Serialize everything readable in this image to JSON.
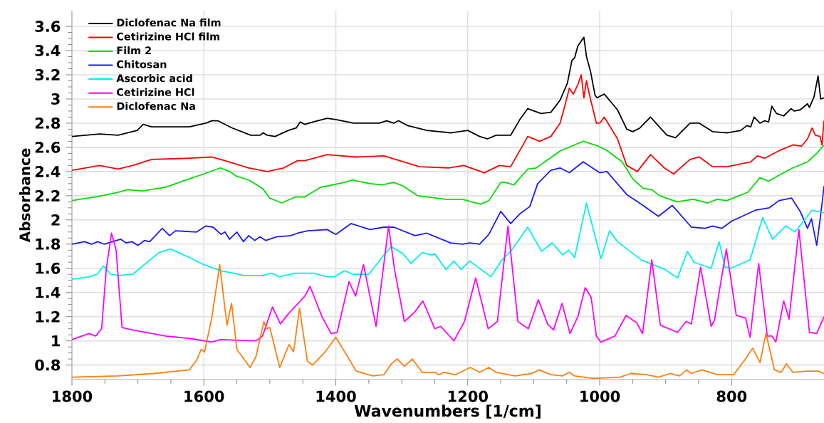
{
  "chart_data": {
    "type": "line",
    "xlabel": "Wavenumbers [1/cm]",
    "ylabel": "Absorbance",
    "xlim": [
      1800,
      660
    ],
    "ylim": [
      0.68,
      3.73
    ],
    "xticks": [
      1800,
      1600,
      1400,
      1200,
      1000,
      800
    ],
    "yticks": [
      0.8,
      1,
      1.2,
      1.4,
      1.6,
      1.8,
      2,
      2.2,
      2.4,
      2.6,
      2.8,
      3,
      3.2,
      3.4,
      3.6
    ],
    "grid": true,
    "legend": "top left",
    "marker": "none",
    "line_style": "solid",
    "series": [
      {
        "name": "Diclofenac Na film",
        "color": "#000000",
        "x": [
          1800,
          1758,
          1730,
          1701,
          1692,
          1679,
          1622,
          1597,
          1588,
          1579,
          1557,
          1529,
          1515,
          1510,
          1504,
          1492,
          1472,
          1460,
          1454,
          1447,
          1434,
          1413,
          1400,
          1373,
          1334,
          1323,
          1312,
          1305,
          1291,
          1262,
          1226,
          1200,
          1182,
          1170,
          1157,
          1135,
          1121,
          1109,
          1089,
          1074,
          1060,
          1049,
          1042,
          1038,
          1033,
          1024,
          1020,
          1014,
          1007,
          1004,
          993,
          973,
          959,
          950,
          939,
          923,
          898,
          885,
          863,
          849,
          829,
          807,
          786,
          777,
          771,
          766,
          757,
          750,
          744,
          739,
          732,
          721,
          710,
          705,
          696,
          685,
          682,
          675,
          669,
          665,
          660
        ],
        "values": [
          2.69,
          2.71,
          2.7,
          2.74,
          2.79,
          2.77,
          2.77,
          2.8,
          2.82,
          2.82,
          2.76,
          2.7,
          2.7,
          2.72,
          2.7,
          2.69,
          2.74,
          2.76,
          2.81,
          2.79,
          2.81,
          2.84,
          2.83,
          2.8,
          2.8,
          2.82,
          2.8,
          2.82,
          2.78,
          2.74,
          2.72,
          2.74,
          2.69,
          2.67,
          2.7,
          2.7,
          2.83,
          2.92,
          2.88,
          2.89,
          2.99,
          3.13,
          3.32,
          3.34,
          3.44,
          3.51,
          3.35,
          3.23,
          3.03,
          3.01,
          3.04,
          2.91,
          2.75,
          2.73,
          2.76,
          2.85,
          2.7,
          2.68,
          2.8,
          2.8,
          2.73,
          2.72,
          2.74,
          2.78,
          2.77,
          2.85,
          2.8,
          2.82,
          2.81,
          2.94,
          2.88,
          2.86,
          2.92,
          2.9,
          2.91,
          2.96,
          2.93,
          3.02,
          3.19,
          3.0,
          3.01
        ]
      },
      {
        "name": "Cetirizine HCl film",
        "color": "#ff0000",
        "x": [
          1800,
          1758,
          1730,
          1708,
          1679,
          1622,
          1588,
          1568,
          1532,
          1504,
          1479,
          1458,
          1447,
          1413,
          1370,
          1327,
          1273,
          1229,
          1206,
          1175,
          1152,
          1135,
          1109,
          1091,
          1074,
          1060,
          1053,
          1046,
          1040,
          1033,
          1028,
          1024,
          1020,
          1014,
          1005,
          1000,
          993,
          973,
          959,
          943,
          923,
          902,
          888,
          863,
          849,
          829,
          807,
          771,
          761,
          750,
          725,
          707,
          694,
          685,
          678,
          673,
          666,
          663,
          660
        ],
        "values": [
          2.41,
          2.45,
          2.42,
          2.45,
          2.5,
          2.51,
          2.52,
          2.49,
          2.43,
          2.4,
          2.43,
          2.49,
          2.49,
          2.54,
          2.52,
          2.53,
          2.44,
          2.43,
          2.45,
          2.39,
          2.45,
          2.44,
          2.69,
          2.65,
          2.69,
          2.8,
          2.94,
          3.09,
          3.04,
          3.12,
          3.2,
          3.01,
          3.15,
          3.0,
          2.8,
          2.8,
          2.85,
          2.67,
          2.45,
          2.4,
          2.54,
          2.43,
          2.38,
          2.5,
          2.52,
          2.44,
          2.44,
          2.48,
          2.53,
          2.51,
          2.58,
          2.62,
          2.61,
          2.67,
          2.76,
          2.7,
          2.69,
          2.62,
          2.82
        ]
      },
      {
        "name": "Film 2",
        "color": "#00dd00",
        "x": [
          1800,
          1765,
          1736,
          1715,
          1693,
          1658,
          1622,
          1600,
          1575,
          1561,
          1550,
          1532,
          1511,
          1500,
          1482,
          1461,
          1447,
          1423,
          1413,
          1387,
          1375,
          1348,
          1330,
          1312,
          1298,
          1276,
          1233,
          1208,
          1181,
          1168,
          1150,
          1143,
          1130,
          1109,
          1096,
          1060,
          1038,
          1025,
          1002,
          988,
          966,
          950,
          934,
          921,
          909,
          883,
          858,
          836,
          822,
          807,
          775,
          757,
          744,
          728,
          707,
          685,
          671,
          660
        ],
        "values": [
          2.16,
          2.19,
          2.22,
          2.25,
          2.24,
          2.27,
          2.34,
          2.38,
          2.43,
          2.4,
          2.36,
          2.33,
          2.26,
          2.18,
          2.14,
          2.19,
          2.19,
          2.27,
          2.28,
          2.31,
          2.33,
          2.3,
          2.29,
          2.31,
          2.28,
          2.2,
          2.17,
          2.17,
          2.13,
          2.16,
          2.31,
          2.31,
          2.29,
          2.42,
          2.43,
          2.57,
          2.62,
          2.65,
          2.61,
          2.57,
          2.48,
          2.34,
          2.26,
          2.25,
          2.2,
          2.15,
          2.17,
          2.14,
          2.17,
          2.16,
          2.23,
          2.35,
          2.32,
          2.37,
          2.43,
          2.48,
          2.55,
          2.62
        ]
      },
      {
        "name": "Chitosan",
        "color": "#1a1aff",
        "x": [
          1800,
          1781,
          1770,
          1761,
          1751,
          1726,
          1718,
          1709,
          1700,
          1690,
          1682,
          1663,
          1652,
          1643,
          1611,
          1597,
          1586,
          1574,
          1568,
          1561,
          1550,
          1540,
          1532,
          1523,
          1515,
          1506,
          1490,
          1468,
          1458,
          1443,
          1413,
          1400,
          1377,
          1348,
          1327,
          1312,
          1280,
          1262,
          1226,
          1208,
          1197,
          1182,
          1168,
          1150,
          1135,
          1121,
          1106,
          1094,
          1074,
          1060,
          1046,
          1025,
          1000,
          989,
          959,
          937,
          911,
          890,
          861,
          840,
          829,
          815,
          800,
          764,
          743,
          728,
          709,
          696,
          685,
          679,
          671,
          666,
          662,
          660
        ],
        "values": [
          1.8,
          1.82,
          1.8,
          1.82,
          1.8,
          1.84,
          1.81,
          1.82,
          1.79,
          1.83,
          1.82,
          1.93,
          1.87,
          1.91,
          1.9,
          1.95,
          1.94,
          1.88,
          1.9,
          1.84,
          1.9,
          1.82,
          1.87,
          1.83,
          1.86,
          1.83,
          1.86,
          1.87,
          1.89,
          1.91,
          1.92,
          1.88,
          1.97,
          1.92,
          1.94,
          1.94,
          1.87,
          1.89,
          1.81,
          1.8,
          1.81,
          1.8,
          1.88,
          2.07,
          1.97,
          2.05,
          2.11,
          2.3,
          2.41,
          2.43,
          2.39,
          2.48,
          2.39,
          2.4,
          2.21,
          2.13,
          2.03,
          2.12,
          1.94,
          1.93,
          1.95,
          1.93,
          1.99,
          2.08,
          2.1,
          2.16,
          2.18,
          2.07,
          1.93,
          2.01,
          1.79,
          2.0,
          2.18,
          2.28
        ]
      },
      {
        "name": "Ascorbic acid",
        "color": "#00f0f0",
        "x": [
          1800,
          1773,
          1762,
          1752,
          1741,
          1730,
          1708,
          1686,
          1668,
          1651,
          1622,
          1600,
          1575,
          1547,
          1540,
          1511,
          1497,
          1486,
          1461,
          1434,
          1413,
          1402,
          1387,
          1373,
          1350,
          1330,
          1316,
          1298,
          1286,
          1269,
          1255,
          1250,
          1233,
          1221,
          1210,
          1197,
          1165,
          1148,
          1135,
          1109,
          1088,
          1072,
          1056,
          1047,
          1038,
          1020,
          1011,
          998,
          985,
          973,
          937,
          901,
          882,
          867,
          857,
          831,
          819,
          810,
          801,
          772,
          753,
          738,
          718,
          704,
          678,
          660
        ],
        "values": [
          1.51,
          1.53,
          1.55,
          1.62,
          1.55,
          1.54,
          1.55,
          1.65,
          1.73,
          1.76,
          1.69,
          1.63,
          1.58,
          1.55,
          1.54,
          1.54,
          1.56,
          1.53,
          1.56,
          1.56,
          1.53,
          1.53,
          1.58,
          1.55,
          1.55,
          1.69,
          1.78,
          1.72,
          1.64,
          1.73,
          1.71,
          1.72,
          1.59,
          1.66,
          1.59,
          1.66,
          1.53,
          1.67,
          1.74,
          1.94,
          1.74,
          1.81,
          1.71,
          1.75,
          1.69,
          2.14,
          1.95,
          1.68,
          1.91,
          1.82,
          1.67,
          1.59,
          1.52,
          1.74,
          1.65,
          1.6,
          1.82,
          1.61,
          1.6,
          1.67,
          2.02,
          1.84,
          1.95,
          1.9,
          2.08,
          2.06
        ]
      },
      {
        "name": "Cetirizine HCl",
        "color": "#ff00ff",
        "x": [
          1800,
          1774,
          1764,
          1755,
          1748,
          1740,
          1733,
          1724,
          1708,
          1658,
          1622,
          1588,
          1575,
          1521,
          1511,
          1496,
          1484,
          1471,
          1457,
          1447,
          1439,
          1421,
          1407,
          1398,
          1380,
          1370,
          1358,
          1339,
          1320,
          1311,
          1296,
          1280,
          1268,
          1250,
          1241,
          1221,
          1205,
          1188,
          1169,
          1155,
          1139,
          1124,
          1108,
          1093,
          1079,
          1070,
          1057,
          1045,
          1033,
          1022,
          1013,
          1005,
          998,
          977,
          960,
          944,
          935,
          921,
          908,
          882,
          869,
          861,
          847,
          831,
          826,
          808,
          793,
          779,
          772,
          759,
          746,
          739,
          733,
          721,
          713,
          698,
          682,
          671,
          660
        ],
        "values": [
          1.01,
          1.06,
          1.04,
          1.1,
          1.59,
          1.89,
          1.75,
          1.11,
          1.09,
          1.04,
          1.02,
          0.99,
          1.01,
          1.0,
          1.04,
          1.28,
          1.14,
          1.23,
          1.31,
          1.37,
          1.45,
          1.2,
          1.06,
          1.07,
          1.49,
          1.37,
          1.63,
          1.12,
          1.95,
          1.59,
          1.16,
          1.24,
          1.33,
          1.1,
          1.12,
          1.0,
          1.16,
          1.52,
          1.1,
          1.16,
          1.95,
          1.16,
          1.1,
          1.34,
          1.14,
          1.09,
          1.31,
          1.06,
          1.2,
          1.44,
          1.36,
          1.04,
          0.99,
          1.04,
          1.21,
          1.15,
          1.06,
          1.67,
          1.13,
          1.07,
          1.16,
          1.14,
          1.61,
          1.12,
          1.17,
          1.76,
          1.21,
          1.19,
          1.03,
          1.64,
          1.04,
          1.04,
          0.99,
          1.33,
          1.18,
          1.92,
          1.07,
          1.06,
          1.2
        ]
      },
      {
        "name": "Diclofenac Na",
        "color": "#ff7f0e",
        "x": [
          1800,
          1730,
          1676,
          1622,
          1611,
          1604,
          1599,
          1588,
          1576,
          1565,
          1558,
          1550,
          1530,
          1521,
          1509,
          1505,
          1500,
          1485,
          1471,
          1464,
          1455,
          1443,
          1435,
          1416,
          1400,
          1369,
          1344,
          1327,
          1316,
          1307,
          1296,
          1284,
          1269,
          1250,
          1244,
          1236,
          1219,
          1196,
          1182,
          1168,
          1157,
          1128,
          1103,
          1092,
          1074,
          1056,
          1046,
          1038,
          1024,
          1009,
          969,
          953,
          929,
          911,
          893,
          879,
          868,
          861,
          845,
          822,
          797,
          779,
          768,
          757,
          748,
          735,
          725,
          717,
          707,
          685,
          669,
          660
        ],
        "values": [
          0.7,
          0.71,
          0.73,
          0.76,
          0.84,
          0.93,
          0.91,
          1.19,
          1.63,
          1.13,
          1.31,
          0.93,
          0.78,
          0.87,
          1.16,
          1.1,
          1.11,
          0.78,
          0.97,
          0.91,
          1.27,
          0.83,
          0.8,
          0.91,
          1.03,
          0.75,
          0.71,
          0.72,
          0.81,
          0.85,
          0.79,
          0.85,
          0.74,
          0.74,
          0.72,
          0.74,
          0.72,
          0.78,
          0.74,
          0.78,
          0.74,
          0.71,
          0.73,
          0.76,
          0.72,
          0.71,
          0.74,
          0.71,
          0.7,
          0.69,
          0.7,
          0.73,
          0.72,
          0.7,
          0.73,
          0.71,
          0.76,
          0.73,
          0.76,
          0.72,
          0.72,
          0.85,
          0.94,
          0.82,
          1.06,
          0.76,
          0.74,
          0.81,
          0.74,
          0.75,
          0.75,
          0.73
        ]
      }
    ]
  }
}
